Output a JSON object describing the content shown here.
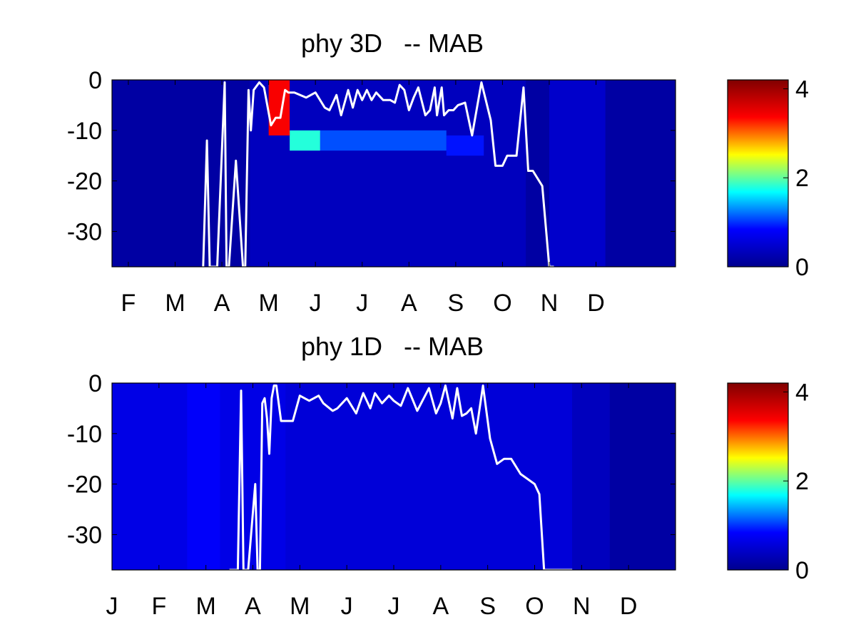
{
  "colormap": {
    "name": "jet",
    "stops": [
      "#00008f",
      "#0000ff",
      "#00ffff",
      "#ffff00",
      "#ff0000",
      "#800000"
    ]
  },
  "chart_data": [
    {
      "type": "heatmap",
      "title": "phy 3D   -- MAB",
      "xlabel": "",
      "ylabel": "",
      "x_ticks": [
        "F",
        "M",
        "A",
        "M",
        "J",
        "J",
        "A",
        "S",
        "O",
        "N",
        "D"
      ],
      "x_tick_months": [
        2,
        3,
        4,
        5,
        6,
        7,
        8,
        9,
        10,
        11,
        12
      ],
      "xlim_month": [
        1.65,
        13.7
      ],
      "y_ticks": [
        0,
        -10,
        -20,
        -30
      ],
      "ylim": [
        -37,
        0
      ],
      "colorbar": {
        "ticks": [
          0,
          2,
          4
        ],
        "range": [
          0,
          4.2
        ]
      },
      "heatmap": {
        "background_value": 0.15,
        "bloom": [
          {
            "x0": 5.0,
            "x1": 5.45,
            "y0": -11,
            "y1": 0,
            "value": 3.4
          },
          {
            "x0": 5.45,
            "x1": 6.1,
            "y0": -14,
            "y1": -10,
            "value": 1.8
          },
          {
            "x0": 6.1,
            "x1": 8.8,
            "y0": -14,
            "y1": -10,
            "value": 1.1
          },
          {
            "x0": 8.8,
            "x1": 9.6,
            "y0": -15,
            "y1": -11,
            "value": 0.9
          },
          {
            "x0": 4.6,
            "x1": 10.5,
            "y0": -37,
            "y1": 0,
            "value": 0.35
          },
          {
            "x0": 11.0,
            "x1": 12.2,
            "y0": -37,
            "y1": 0,
            "value": 0.45
          }
        ]
      },
      "line": {
        "x": [
          3.6,
          3.68,
          3.74,
          3.8,
          3.9,
          4.06,
          4.1,
          4.15,
          4.3,
          4.45,
          4.5,
          4.57,
          4.62,
          4.68,
          4.8,
          4.9,
          5.05,
          5.15,
          5.25,
          5.35,
          5.42,
          5.55,
          5.8,
          6.0,
          6.2,
          6.3,
          6.45,
          6.55,
          6.7,
          6.8,
          6.9,
          7.0,
          7.1,
          7.2,
          7.3,
          7.45,
          7.6,
          7.7,
          7.8,
          7.9,
          8.0,
          8.1,
          8.2,
          8.35,
          8.45,
          8.55,
          8.6,
          8.7,
          8.75,
          8.85,
          8.95,
          9.05,
          9.2,
          9.35,
          9.55,
          9.75,
          9.85,
          10.0,
          10.1,
          10.3,
          10.45,
          10.55,
          10.65,
          10.85,
          11.0,
          11.1
        ],
        "y": [
          -37,
          -12,
          -37,
          -37,
          -37,
          -0.5,
          -37,
          -37,
          -16,
          -37,
          -37,
          -2,
          -10,
          -2,
          -0.5,
          -1.5,
          -9,
          -7.5,
          -7.5,
          -2,
          -2.5,
          -2.5,
          -3.5,
          -2.5,
          -5.5,
          -6,
          -3,
          -7,
          -2,
          -5.5,
          -2,
          -4,
          -2,
          -4,
          -2.5,
          -4,
          -4,
          -4.5,
          -1,
          -2,
          -6,
          -3.5,
          -1.5,
          -7,
          -6,
          -1.5,
          -7,
          -1.5,
          -7,
          -6,
          -6,
          -5,
          -4.5,
          -11,
          -0.5,
          -8,
          -17,
          -17,
          -15,
          -15,
          -1.5,
          -18,
          -18,
          -21,
          -37,
          -37
        ]
      }
    },
    {
      "type": "heatmap",
      "title": "phy 1D   -- MAB",
      "xlabel": "",
      "ylabel": "",
      "x_ticks": [
        "J",
        "F",
        "M",
        "A",
        "M",
        "J",
        "J",
        "A",
        "S",
        "O",
        "N",
        "D"
      ],
      "x_tick_months": [
        1,
        2,
        3,
        4,
        5,
        6,
        7,
        8,
        9,
        10,
        11,
        12
      ],
      "xlim_month": [
        1.0,
        13.0
      ],
      "y_ticks": [
        0,
        -10,
        -20,
        -30
      ],
      "ylim": [
        -37,
        0
      ],
      "colorbar": {
        "ticks": [
          0,
          2,
          4
        ],
        "range": [
          0,
          4.2
        ]
      },
      "heatmap": {
        "background_value": 0.15,
        "bloom": [
          {
            "x0": 1.0,
            "x1": 4.7,
            "y0": -37,
            "y1": 0,
            "value": 0.65
          },
          {
            "x0": 2.6,
            "x1": 3.3,
            "y0": -37,
            "y1": 0,
            "value": 0.8
          },
          {
            "x0": 4.7,
            "x1": 10.8,
            "y0": -37,
            "y1": 0,
            "value": 0.55
          },
          {
            "x0": 10.8,
            "x1": 11.6,
            "y0": -37,
            "y1": 0,
            "value": 0.35
          }
        ]
      },
      "line": {
        "x": [
          3.5,
          3.62,
          3.68,
          3.75,
          3.8,
          3.9,
          4.05,
          4.1,
          4.15,
          4.2,
          4.25,
          4.3,
          4.35,
          4.4,
          4.45,
          4.5,
          4.6,
          4.7,
          4.85,
          5.0,
          5.2,
          5.4,
          5.5,
          5.7,
          5.8,
          6.0,
          6.2,
          6.35,
          6.5,
          6.6,
          6.75,
          6.9,
          7.0,
          7.15,
          7.3,
          7.5,
          7.75,
          7.9,
          8.0,
          8.1,
          8.25,
          8.35,
          8.45,
          8.55,
          8.65,
          8.75,
          8.9,
          9.05,
          9.2,
          9.35,
          9.5,
          9.7,
          9.85,
          10.0,
          10.1,
          10.2,
          10.4,
          10.55,
          10.7,
          10.75,
          10.8
        ],
        "y": [
          -37,
          -37,
          -37,
          -1.5,
          -37,
          -37,
          -20,
          -37,
          -37,
          -4,
          -3,
          -7,
          -14,
          -3,
          -0.5,
          -0.5,
          -7.5,
          -7.5,
          -7.5,
          -2.5,
          -3.5,
          -2.5,
          -4,
          -5.5,
          -5,
          -3,
          -6,
          -2,
          -5,
          -2,
          -4,
          -2.5,
          -3.5,
          -4.5,
          -1,
          -5.5,
          -1,
          -6,
          -4,
          -0.5,
          -7,
          -1,
          -6.5,
          -6,
          -5,
          -10,
          -0.5,
          -11,
          -16,
          -15,
          -15,
          -18,
          -19,
          -20,
          -22,
          -37,
          -37,
          -37,
          -37,
          -37,
          -37
        ]
      }
    }
  ]
}
